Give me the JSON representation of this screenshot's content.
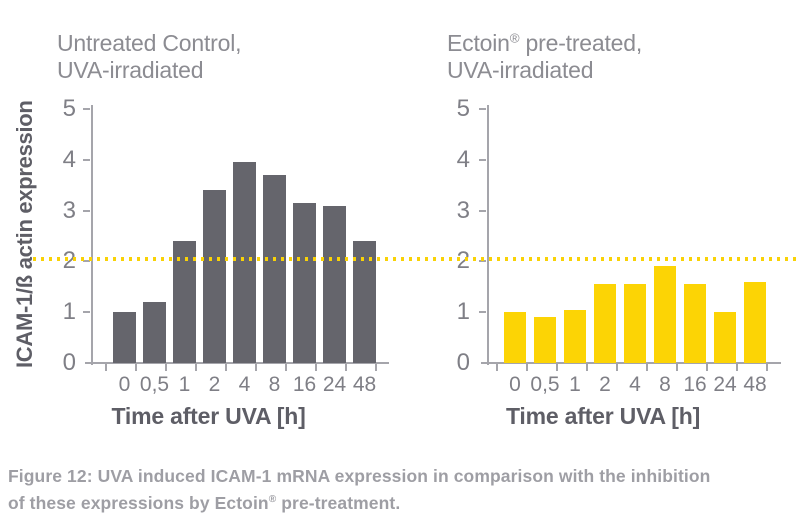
{
  "figure": {
    "caption": {
      "line1": "Figure 12: UVA induced ICAM-1 mRNA expression in comparison with the inhibition",
      "line2_pre": "of these expressions by Ectoin",
      "line2_sup": "®",
      "line2_post": " pre-treatment."
    }
  },
  "colors": {
    "bar_gray": "#65656c",
    "bar_yellow": "#fcd405",
    "threshold_yellow": "#f9d206",
    "title_gray": "#8c8c92",
    "tick_gray": "#7f7f86",
    "label_dark": "#5e5e66",
    "caption_gray": "#9e9ea4",
    "axis_line": "#a5a5ab"
  },
  "chart_data": [
    {
      "type": "bar",
      "title": "Untreated Control, UVA-irradiated",
      "header": {
        "line1_pre": "Untreated Control,",
        "line1_sup": "",
        "line1_post": "",
        "line2": "UVA-irradiated"
      },
      "categories": [
        "0",
        "0,5",
        "1",
        "2",
        "4",
        "8",
        "16",
        "24",
        "48"
      ],
      "values": [
        1.0,
        1.2,
        2.4,
        3.4,
        3.95,
        3.7,
        3.15,
        3.1,
        2.4
      ],
      "xlabel": "Time after UVA [h]",
      "ylabel": "ICAM-1/ß actin expression",
      "ylim": [
        0,
        5
      ],
      "yticks": [
        0,
        1,
        2,
        3,
        4,
        5
      ],
      "bar_color_key": "bar_gray",
      "grid": false,
      "ref_line": {
        "y": 2.05,
        "style": "dotted",
        "color": "#f9d206"
      }
    },
    {
      "type": "bar",
      "title": "Ectoin® pre-treated, UVA-irradiated",
      "header": {
        "line1_pre": "Ectoin",
        "line1_sup": "®",
        "line1_post": " pre-treated,",
        "line2": "UVA-irradiated"
      },
      "categories": [
        "0",
        "0,5",
        "1",
        "2",
        "4",
        "8",
        "16",
        "24",
        "48"
      ],
      "values": [
        1.0,
        0.9,
        1.05,
        1.55,
        1.55,
        1.9,
        1.55,
        1.0,
        1.6
      ],
      "xlabel": "Time after UVA [h]",
      "ylim": [
        0,
        5
      ],
      "yticks": [
        0,
        1,
        2,
        3,
        4,
        5
      ],
      "bar_color_key": "bar_yellow",
      "grid": false,
      "ref_line": {
        "y": 2.05,
        "style": "dotted",
        "color": "#f9d206"
      }
    }
  ]
}
